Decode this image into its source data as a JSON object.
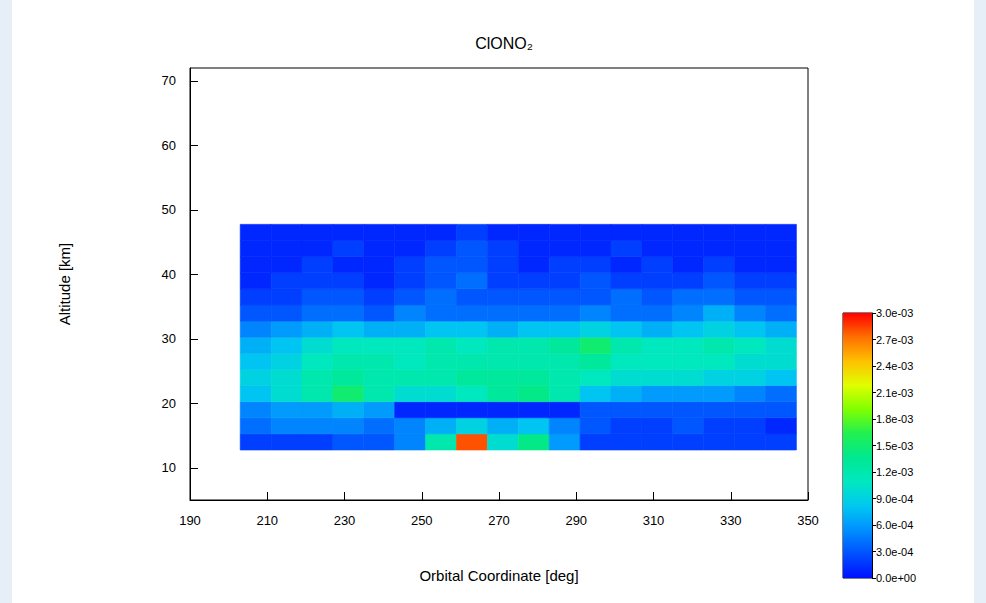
{
  "chart_data": {
    "type": "heatmap",
    "title": "ClONO₂",
    "x_label": "Orbital Coordinate [deg]",
    "y_label": "Altitude [km]",
    "xlim": [
      190,
      350
    ],
    "xticks": [
      190,
      210,
      230,
      250,
      270,
      290,
      310,
      330,
      350
    ],
    "ylim": [
      5,
      72
    ],
    "yticks": [
      10,
      20,
      30,
      40,
      50,
      60,
      70
    ],
    "cells": {
      "x": [
        207,
        215,
        223,
        231,
        239,
        247,
        255,
        263,
        271,
        279,
        287,
        295,
        303,
        311,
        319,
        327,
        335,
        343
      ],
      "y": [
        14,
        16.5,
        19,
        21.5,
        24,
        26.5,
        29,
        31.5,
        34,
        36.5,
        39,
        41.5,
        44,
        46.5
      ],
      "values": [
        [
          0.0002,
          0.0002,
          0.0002,
          0.0003,
          0.0003,
          0.0005,
          0.0012,
          0.0028,
          0.001,
          0.0014,
          0.0006,
          0.0002,
          0.0002,
          0.0002,
          0.0002,
          0.0002,
          0.0002,
          0.0002
        ],
        [
          0.0004,
          0.0005,
          0.0005,
          0.0005,
          0.0004,
          0.0005,
          0.0007,
          0.0009,
          0.0007,
          0.0008,
          0.0005,
          0.0003,
          0.0002,
          0.0002,
          0.0003,
          0.0002,
          0.0002,
          0.0001
        ],
        [
          0.0005,
          0.0006,
          0.0006,
          0.0007,
          0.0006,
          0.0001,
          0.0001,
          0.0001,
          0.0001,
          0.0001,
          0.0001,
          0.0003,
          0.0003,
          0.0003,
          0.0003,
          0.0003,
          0.0003,
          0.0003
        ],
        [
          0.0008,
          0.001,
          0.0012,
          0.0015,
          0.0012,
          0.001,
          0.001,
          0.0011,
          0.0013,
          0.0014,
          0.0012,
          0.0008,
          0.0007,
          0.0006,
          0.0006,
          0.0006,
          0.0005,
          0.0004
        ],
        [
          0.0009,
          0.001,
          0.0012,
          0.0013,
          0.0012,
          0.0012,
          0.0012,
          0.0013,
          0.0013,
          0.0013,
          0.0012,
          0.0011,
          0.001,
          0.001,
          0.001,
          0.0009,
          0.0009,
          0.0008
        ],
        [
          0.0008,
          0.0009,
          0.0011,
          0.0012,
          0.0012,
          0.0011,
          0.0012,
          0.0012,
          0.0012,
          0.0012,
          0.0012,
          0.0013,
          0.0011,
          0.0011,
          0.0011,
          0.0011,
          0.001,
          0.001
        ],
        [
          0.0007,
          0.0008,
          0.001,
          0.0011,
          0.0011,
          0.0011,
          0.0012,
          0.0011,
          0.0012,
          0.0012,
          0.0013,
          0.0015,
          0.0012,
          0.0011,
          0.0011,
          0.0012,
          0.0011,
          0.001
        ],
        [
          0.0005,
          0.0006,
          0.0007,
          0.0008,
          0.0007,
          0.0007,
          0.0008,
          0.0008,
          0.0007,
          0.0008,
          0.0008,
          0.0009,
          0.0008,
          0.0007,
          0.0008,
          0.0009,
          0.0008,
          0.0007
        ],
        [
          0.0003,
          0.0003,
          0.0004,
          0.0004,
          0.0003,
          0.0005,
          0.0004,
          0.0004,
          0.0004,
          0.0004,
          0.0004,
          0.0005,
          0.0004,
          0.0004,
          0.0005,
          0.0007,
          0.0005,
          0.0004
        ],
        [
          0.0002,
          0.0002,
          0.0003,
          0.0003,
          0.0002,
          0.0003,
          0.0004,
          0.0003,
          0.0003,
          0.0003,
          0.0003,
          0.0003,
          0.0004,
          0.0003,
          0.0004,
          0.0004,
          0.0003,
          0.0003
        ],
        [
          0.0001,
          0.0002,
          0.0002,
          0.0002,
          0.0001,
          0.0002,
          0.0003,
          0.0004,
          0.0002,
          0.0002,
          0.0002,
          0.0003,
          0.0002,
          0.0002,
          0.0002,
          0.0003,
          0.0002,
          0.0002
        ],
        [
          0.0001,
          0.0001,
          0.0002,
          0.0001,
          0.0001,
          0.0002,
          0.0003,
          0.0003,
          0.0002,
          0.0001,
          0.0002,
          0.0002,
          0.0001,
          0.0002,
          0.0001,
          0.0002,
          0.0001,
          0.0001
        ],
        [
          0.0001,
          0.0001,
          0.0001,
          0.0002,
          0.0001,
          0.0001,
          0.0002,
          0.0003,
          0.0002,
          0.0001,
          0.0001,
          0.0001,
          0.0002,
          0.0001,
          0.0001,
          0.0001,
          0.0001,
          0.0001
        ],
        [
          0.0001,
          0.0001,
          0.0001,
          0.0001,
          0.0001,
          0.0001,
          0.0001,
          0.0002,
          0.0001,
          0.0001,
          0.0001,
          0.0001,
          0.0001,
          0.0001,
          0.0001,
          0.0001,
          0.0001,
          0.0001
        ]
      ]
    },
    "colorbar": {
      "range": [
        0,
        0.003
      ],
      "ticks": [
        {
          "value": 0,
          "label": "0.0e+00"
        },
        {
          "value": 0.0003,
          "label": "3.0e-04"
        },
        {
          "value": 0.0006,
          "label": "6.0e-04"
        },
        {
          "value": 0.0009,
          "label": "9.0e-04"
        },
        {
          "value": 0.0012,
          "label": "1.2e-03"
        },
        {
          "value": 0.0015,
          "label": "1.5e-03"
        },
        {
          "value": 0.0018,
          "label": "1.8e-03"
        },
        {
          "value": 0.0021,
          "label": "2.1e-03"
        },
        {
          "value": 0.0024,
          "label": "2.4e-03"
        },
        {
          "value": 0.0027,
          "label": "2.7e-03"
        },
        {
          "value": 0.003,
          "label": "3.0e-03"
        }
      ]
    }
  }
}
